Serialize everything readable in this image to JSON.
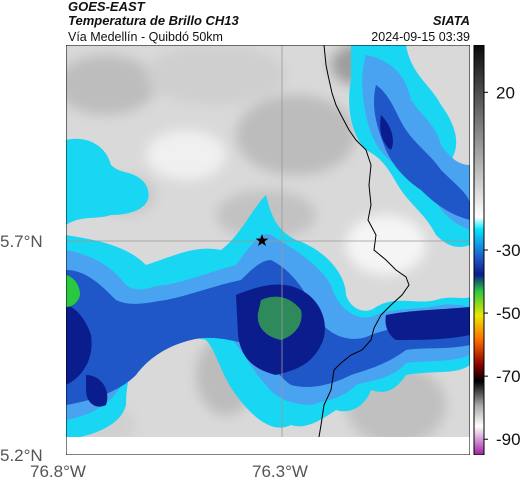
{
  "header": {
    "title_line1": "GOES-EAST",
    "title_line2": "Temperatura de Brillo CH13",
    "subtitle": "Vía Medellín - Quibdó 50km",
    "agency": "SIATA",
    "timestamp": "2024-09-15 03:39"
  },
  "axes": {
    "lat_labels": [
      "5.7°N",
      "5.2°N"
    ],
    "lon_labels": [
      "76.8°W",
      "76.3°W"
    ]
  },
  "colorbar": {
    "tick_labels": [
      "20",
      "-30",
      "-50",
      "-70",
      "-90"
    ],
    "tick_values": [
      20,
      -30,
      -50,
      -70,
      -90
    ],
    "range": [
      -95,
      35
    ]
  },
  "map": {
    "marker": "star-icon",
    "colors": {
      "cloud_light": "#e6e6e6",
      "cloud_mid": "#bdbdbd",
      "cyan": "#19d6f2",
      "light_blue": "#4aa3f0",
      "blue": "#1f56c8",
      "navy": "#0b1d8c",
      "green": "#2e8a5a",
      "bright_green": "#28c840",
      "border_line": "#000000",
      "gridline": "#999999"
    }
  }
}
